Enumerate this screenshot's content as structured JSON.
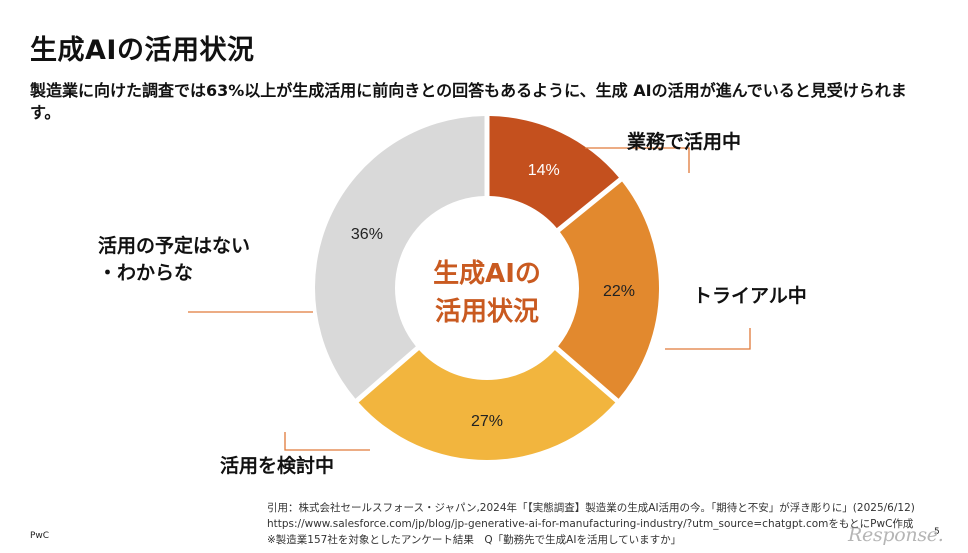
{
  "page": {
    "title": "生成AIの活用状況",
    "subtitle": "製造業に向けた調査では63%以上が生成活用に前向きとの回答もあるように、生成 AIの活用が進んでいると見受けられます。",
    "footer_brand": "PwC",
    "page_number": "5",
    "watermark": "Response."
  },
  "citation": {
    "line1": "引用：株式会社セールスフォース・ジャパン,2024年「【実態調査】製造業の生成AI活用の今。「期待と不安」が浮き彫りに」(2025/6/12)",
    "line2": "https://www.salesforce.com/jp/blog/jp-generative-ai-for-manufacturing-industry/?utm_source=chatgpt.comをもとにPwC作成",
    "line3": "※製造業157社を対象としたアンケート結果　Q「勤務先で生成AIを活用していますか」"
  },
  "chart_data": {
    "type": "pie",
    "variant": "donut",
    "center_label": [
      "生成AIの",
      "活用状況"
    ],
    "center_color": "#c95a20",
    "slices": [
      {
        "label": "業務で活用中",
        "value": 14,
        "value_label": "14%",
        "color": "#c4501e"
      },
      {
        "label": "トライアル中",
        "value": 22,
        "value_label": "22%",
        "color": "#e2892e"
      },
      {
        "label": "活用を検討中",
        "value": 27,
        "value_label": "27%",
        "color": "#f2b53e"
      },
      {
        "label": "活用の予定はない・わからな",
        "label_lines": [
          "活用の予定はない",
          "・わからな"
        ],
        "value": 36,
        "value_label": "36%",
        "color": "#d9d9d9"
      }
    ],
    "value_label_colors": [
      "#ffffff",
      "#222222",
      "#222222",
      "#222222"
    ],
    "leader_color": "#e07a3a"
  }
}
